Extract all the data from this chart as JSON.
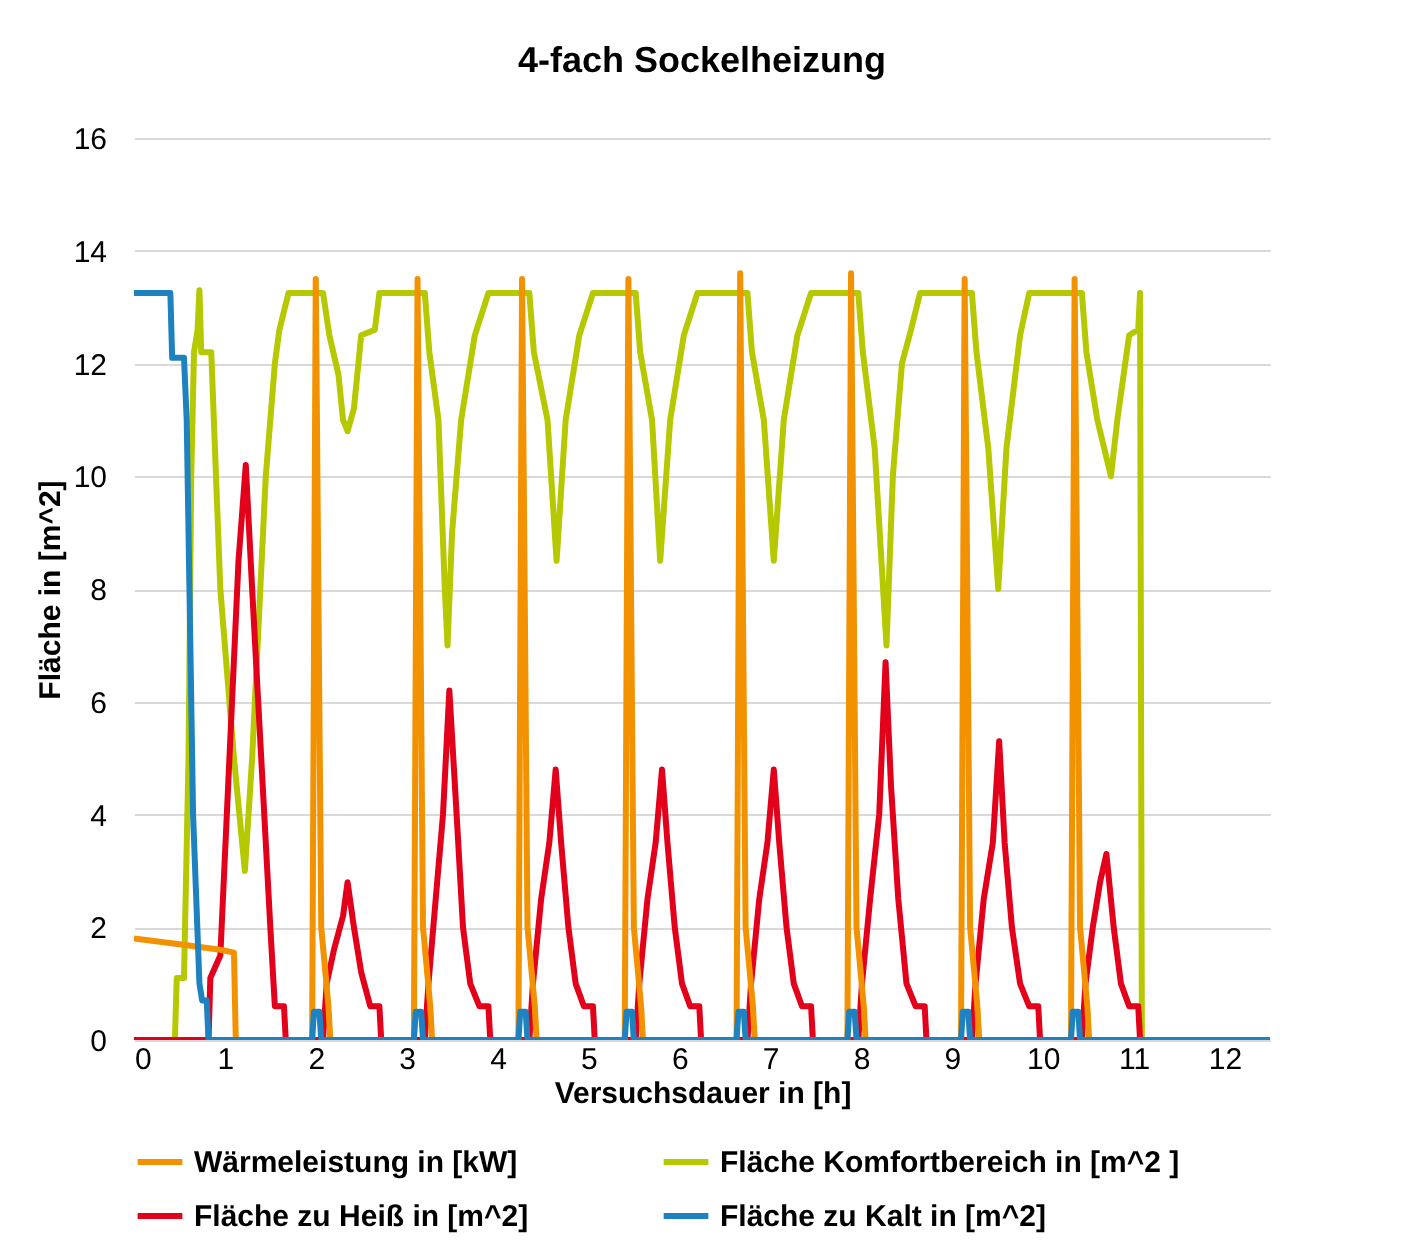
{
  "chart_data": {
    "type": "line",
    "title": "4-fach Sockelheizung",
    "xlabel": "Versuchsdauer in [h]",
    "ylabel": "Fläche in [m^2]",
    "xlim": [
      0,
      12.5
    ],
    "xticks": [
      0,
      1,
      2,
      3,
      4,
      5,
      6,
      7,
      8,
      9,
      10,
      11,
      12
    ],
    "ylim": [
      0,
      16
    ],
    "yticks": [
      0,
      2,
      4,
      6,
      8,
      10,
      12,
      14,
      16
    ],
    "grid": "y",
    "legend": "bottom",
    "line_style": "solid",
    "marker": "none",
    "series": [
      {
        "name": "Wärmeleistung in [kW]",
        "color": "#f39200",
        "x": [
          0,
          0.5,
          0.95,
          1.1,
          1.12,
          1.96,
          2.0,
          2.06,
          2.14,
          2.16,
          3.08,
          3.12,
          3.18,
          3.26,
          3.28,
          4.23,
          4.27,
          4.33,
          4.41,
          4.43,
          5.4,
          5.44,
          5.5,
          5.58,
          5.6,
          6.63,
          6.67,
          6.73,
          6.81,
          6.83,
          7.85,
          7.89,
          7.95,
          8.03,
          8.05,
          9.1,
          9.14,
          9.2,
          9.28,
          9.3,
          10.31,
          10.35,
          10.41,
          10.49,
          10.51,
          12.5
        ],
        "values": [
          1.8,
          1.7,
          1.6,
          1.55,
          0,
          0,
          13.5,
          2,
          0.6,
          0,
          0,
          13.5,
          2,
          0.6,
          0,
          0,
          13.5,
          2,
          0.6,
          0,
          0,
          13.5,
          2,
          0.6,
          0,
          0,
          13.6,
          2,
          0.6,
          0,
          0,
          13.6,
          2,
          0.6,
          0,
          0,
          13.5,
          2,
          0.6,
          0,
          0,
          13.5,
          2,
          0.6,
          0,
          0
        ]
      },
      {
        "name": "Fläche Komfortbereich in [m^2 ]",
        "color": "#b5c800",
        "x": [
          0,
          0.45,
          0.47,
          0.55,
          0.6,
          0.63,
          0.66,
          0.7,
          0.72,
          0.74,
          0.85,
          0.95,
          1.1,
          1.22,
          1.3,
          1.45,
          1.55,
          1.6,
          1.7,
          2.08,
          2.15,
          2.25,
          2.3,
          2.35,
          2.42,
          2.5,
          2.65,
          2.7,
          3.2,
          3.25,
          3.35,
          3.42,
          3.45,
          3.5,
          3.6,
          3.75,
          3.9,
          4.35,
          4.4,
          4.55,
          4.65,
          4.75,
          4.9,
          5.05,
          5.52,
          5.57,
          5.7,
          5.79,
          5.9,
          6.05,
          6.2,
          6.75,
          6.8,
          6.93,
          7.04,
          7.15,
          7.3,
          7.45,
          7.97,
          8.02,
          8.15,
          8.28,
          8.35,
          8.45,
          8.55,
          8.65,
          9.22,
          9.27,
          9.4,
          9.51,
          9.6,
          9.75,
          9.85,
          10.43,
          10.48,
          10.6,
          10.75,
          10.82,
          10.95,
          11.05,
          11.07,
          11.09,
          12.5
        ],
        "values": [
          0,
          0,
          1.1,
          1.1,
          5,
          10,
          12.2,
          12.6,
          13.3,
          12.2,
          12.2,
          8,
          5,
          3,
          5,
          10,
          12,
          12.6,
          13.25,
          13.25,
          12.5,
          11.8,
          11,
          10.8,
          11.2,
          12.5,
          12.6,
          13.25,
          13.25,
          12.2,
          11,
          8,
          7,
          9,
          11,
          12.5,
          13.25,
          13.25,
          12.2,
          11,
          8.5,
          11,
          12.5,
          13.25,
          13.25,
          12.2,
          11,
          8.5,
          11,
          12.5,
          13.25,
          13.25,
          12.2,
          11,
          8.5,
          11,
          12.5,
          13.25,
          13.25,
          12.2,
          10.5,
          7,
          10,
          12,
          12.6,
          13.25,
          13.25,
          12.2,
          10.5,
          8,
          10.5,
          12.5,
          13.25,
          13.25,
          12.2,
          11,
          10,
          11,
          12.5,
          12.6,
          13.25,
          0,
          0
        ]
      },
      {
        "name": "Fläche zu Heiß in [m^2]",
        "color": "#e2001a",
        "x": [
          0,
          0.82,
          0.84,
          0.95,
          1.05,
          1.15,
          1.23,
          1.3,
          1.4,
          1.5,
          1.55,
          1.65,
          1.67,
          2.08,
          2.12,
          2.2,
          2.3,
          2.35,
          2.42,
          2.5,
          2.6,
          2.7,
          2.72,
          3.2,
          3.24,
          3.32,
          3.4,
          3.47,
          3.55,
          3.62,
          3.7,
          3.8,
          3.9,
          3.92,
          4.35,
          4.39,
          4.48,
          4.57,
          4.64,
          4.7,
          4.78,
          4.86,
          4.95,
          5.05,
          5.07,
          5.52,
          5.56,
          5.65,
          5.74,
          5.81,
          5.87,
          5.95,
          6.03,
          6.12,
          6.22,
          6.24,
          6.75,
          6.79,
          6.88,
          6.97,
          7.04,
          7.1,
          7.18,
          7.26,
          7.35,
          7.45,
          7.47,
          7.97,
          8.01,
          8.1,
          8.2,
          8.27,
          8.33,
          8.41,
          8.5,
          8.6,
          8.7,
          8.72,
          9.22,
          9.26,
          9.35,
          9.45,
          9.52,
          9.58,
          9.66,
          9.75,
          9.85,
          9.95,
          9.97,
          10.43,
          10.47,
          10.55,
          10.63,
          10.7,
          10.78,
          10.86,
          10.95,
          11.05,
          11.07,
          12.5
        ],
        "values": [
          0,
          0,
          1.1,
          1.5,
          5,
          8.5,
          10.2,
          8,
          5,
          2,
          0.6,
          0.6,
          0,
          0,
          1,
          1.6,
          2.2,
          2.8,
          2,
          1.2,
          0.6,
          0.6,
          0,
          0,
          1,
          2.5,
          4,
          6.2,
          4,
          2,
          1,
          0.6,
          0.6,
          0,
          0,
          1,
          2.5,
          3.5,
          4.8,
          3.5,
          2,
          1,
          0.6,
          0.6,
          0,
          0,
          1,
          2.5,
          3.5,
          4.8,
          3.5,
          2,
          1,
          0.6,
          0.6,
          0,
          0,
          1,
          2.5,
          3.5,
          4.8,
          3.5,
          2,
          1,
          0.6,
          0.6,
          0,
          0,
          1,
          2.5,
          4,
          6.7,
          4.5,
          2.5,
          1,
          0.6,
          0.6,
          0,
          0,
          1,
          2.5,
          3.5,
          5.3,
          3.5,
          2,
          1,
          0.6,
          0.6,
          0,
          0,
          1,
          2,
          2.8,
          3.3,
          2,
          1,
          0.6,
          0.6,
          0,
          0
        ]
      },
      {
        "name": "Fläche zu Kalt in [m^2]",
        "color": "#1f82c0",
        "x": [
          0,
          0.4,
          0.42,
          0.55,
          0.58,
          0.65,
          0.72,
          0.75,
          0.8,
          0.82,
          1.96,
          1.98,
          2.04,
          2.06,
          3.08,
          3.1,
          3.16,
          3.18,
          4.23,
          4.25,
          4.31,
          4.33,
          5.4,
          5.42,
          5.48,
          5.5,
          6.63,
          6.65,
          6.71,
          6.73,
          7.85,
          7.87,
          7.93,
          7.95,
          9.1,
          9.12,
          9.18,
          9.2,
          10.31,
          10.33,
          10.39,
          10.41,
          12.5
        ],
        "values": [
          13.25,
          13.25,
          12.1,
          12.1,
          11,
          4,
          1,
          0.7,
          0.7,
          0,
          0,
          0.5,
          0.5,
          0,
          0,
          0.5,
          0.5,
          0,
          0,
          0.5,
          0.5,
          0,
          0,
          0.5,
          0.5,
          0,
          0,
          0.5,
          0.5,
          0,
          0,
          0.5,
          0.5,
          0,
          0,
          0.5,
          0.5,
          0,
          0,
          0.5,
          0.5,
          0,
          0
        ]
      }
    ]
  }
}
